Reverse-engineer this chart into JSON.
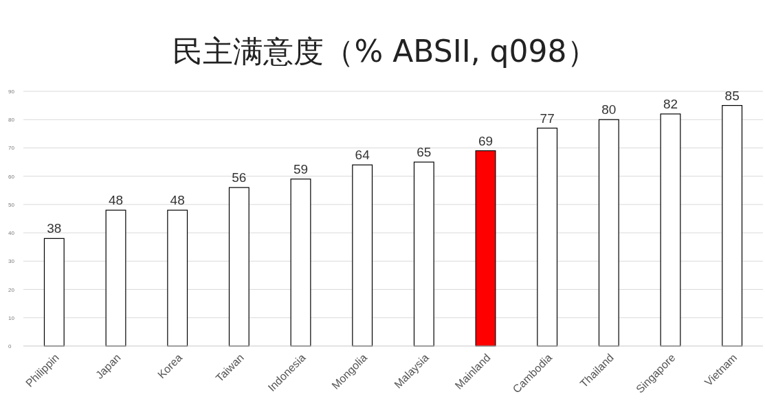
{
  "chart_data": {
    "type": "bar",
    "title": "民主满意度（% ABSII, q098）",
    "categories": [
      "Philippin",
      "Japan",
      "Korea",
      "Taiwan",
      "Indonesia",
      "Mongolia",
      "Malaysia",
      "Mainland",
      "Cambodia",
      "Thailand",
      "Singapore",
      "Vietnam"
    ],
    "values": [
      38,
      48,
      48,
      56,
      59,
      64,
      65,
      69,
      77,
      80,
      82,
      85
    ],
    "colors": [
      "#ffffff",
      "#ffffff",
      "#ffffff",
      "#ffffff",
      "#ffffff",
      "#ffffff",
      "#ffffff",
      "#ff0000",
      "#ffffff",
      "#ffffff",
      "#ffffff",
      "#ffffff"
    ],
    "ylim": [
      0,
      90
    ],
    "yticks": [
      0,
      10,
      20,
      30,
      40,
      50,
      60,
      70,
      80,
      90
    ],
    "grid": "y",
    "data_labels": true
  }
}
